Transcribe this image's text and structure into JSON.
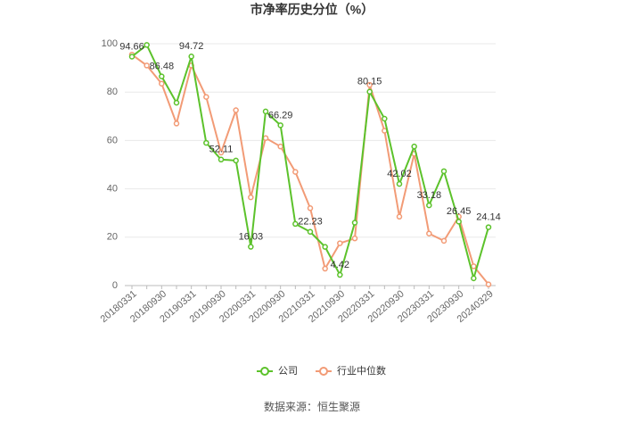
{
  "chart_data": {
    "type": "line",
    "title": "市净率历史分位（%）",
    "categories": [
      "20180331",
      null,
      "20180930",
      null,
      "20190331",
      null,
      "20190930",
      null,
      "20200331",
      null,
      "20200930",
      null,
      "20210331",
      null,
      "20210930",
      null,
      "20220331",
      null,
      "20220930",
      null,
      "20230331",
      null,
      "20230930",
      null,
      "20240329"
    ],
    "series": [
      {
        "name": "公司",
        "color": "#5cc22b",
        "values": [
          94.66,
          99.5,
          86.48,
          75.6,
          94.72,
          59,
          52.11,
          51.7,
          16.03,
          72,
          66.29,
          25.5,
          22.23,
          16,
          4.42,
          26,
          80.15,
          69,
          42.02,
          57.5,
          33.18,
          47.3,
          26.45,
          3,
          24.14
        ],
        "value_labels": [
          "94.66",
          null,
          "86.48",
          null,
          "94.72",
          null,
          "52.11",
          null,
          "16.03",
          null,
          "66.29",
          null,
          "22.23",
          null,
          "4.42",
          null,
          "80.15",
          null,
          "42.02",
          null,
          "33.18",
          null,
          "26.45",
          null,
          "24.14"
        ]
      },
      {
        "name": "行业中位数",
        "color": "#f29b76",
        "values": [
          95.5,
          91,
          83.5,
          67,
          91,
          78,
          55,
          72.5,
          36.5,
          61,
          57.5,
          47,
          32,
          7,
          17.5,
          19.5,
          83,
          64,
          28.5,
          54.5,
          21.5,
          18.5,
          28.5,
          8,
          0.5
        ]
      }
    ],
    "ylim": [
      0,
      100
    ],
    "yticks": [
      0,
      20,
      40,
      60,
      80,
      100
    ],
    "grid": true,
    "legend": "bottom",
    "source": "数据来源：恒生聚源"
  }
}
